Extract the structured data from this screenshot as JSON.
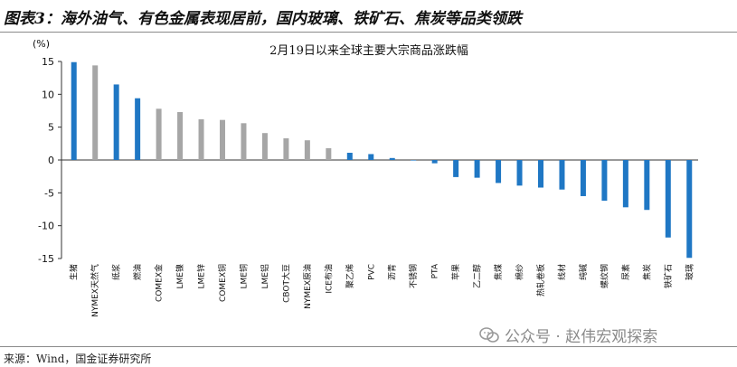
{
  "figure": {
    "title": "图表3：海外油气、有色金属表现居前，国内玻璃、铁矿石、焦炭等品类领跌",
    "source": "来源：Wind，国金证券研究所",
    "watermark": "公众号 · 赵伟宏观探索"
  },
  "chart_data": {
    "type": "bar",
    "title": "2月19日以来全球主要大宗商品涨跌幅",
    "ylabel": "(%)",
    "ylim": [
      -15,
      15
    ],
    "yticks": [
      15,
      10,
      5,
      0,
      -5,
      -10,
      -15
    ],
    "categories": [
      "生猪",
      "NYMEX天然气",
      "纸浆",
      "燃油",
      "COMEX金",
      "LME镍",
      "LME锌",
      "COMEX铜",
      "LME铜",
      "LME铝",
      "CBOT大豆",
      "NYMEX原油",
      "ICE布油",
      "聚乙烯",
      "PVC",
      "沥青",
      "不锈钢",
      "PTA",
      "苹果",
      "乙二醇",
      "焦煤",
      "棉纱",
      "热轧卷板",
      "线材",
      "纯碱",
      "螺纹钢",
      "尿素",
      "焦炭",
      "铁矿石",
      "玻璃"
    ],
    "values": [
      14.9,
      14.4,
      11.5,
      9.4,
      7.8,
      7.3,
      6.2,
      6.1,
      5.6,
      4.1,
      3.3,
      3.0,
      1.8,
      1.1,
      0.9,
      0.3,
      0.0,
      -0.5,
      -2.6,
      -2.7,
      -3.5,
      -3.9,
      -4.2,
      -4.5,
      -5.5,
      -6.2,
      -7.2,
      -7.6,
      -11.8,
      -14.9
    ],
    "colors": [
      "blue",
      "gray",
      "blue",
      "blue",
      "gray",
      "gray",
      "gray",
      "gray",
      "gray",
      "gray",
      "gray",
      "gray",
      "gray",
      "blue",
      "blue",
      "blue",
      "blue",
      "blue",
      "blue",
      "blue",
      "blue",
      "blue",
      "blue",
      "blue",
      "blue",
      "blue",
      "blue",
      "blue",
      "blue",
      "blue"
    ],
    "palette": {
      "blue": "#1f77c4",
      "gray": "#a6a6a6"
    },
    "grid": false,
    "legend": "none"
  }
}
